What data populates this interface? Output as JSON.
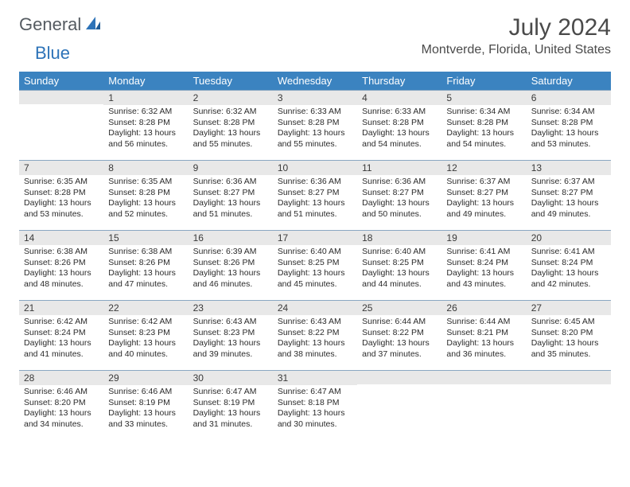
{
  "logo": {
    "general": "General",
    "blue": "Blue"
  },
  "title": "July 2024",
  "location": "Montverde, Florida, United States",
  "colors": {
    "header_bg": "#3b83c0",
    "header_text": "#ffffff",
    "daynum_bg": "#e8e8e8",
    "row_border": "#8aa7c2",
    "logo_gray": "#555b61",
    "logo_blue": "#2d73b8",
    "text": "#2b2b2b"
  },
  "weekdays": [
    "Sunday",
    "Monday",
    "Tuesday",
    "Wednesday",
    "Thursday",
    "Friday",
    "Saturday"
  ],
  "weeks": [
    [
      {
        "day": "",
        "sunrise": "",
        "sunset": "",
        "daylight_line1": "",
        "daylight_line2": ""
      },
      {
        "day": "1",
        "sunrise": "Sunrise: 6:32 AM",
        "sunset": "Sunset: 8:28 PM",
        "daylight_line1": "Daylight: 13 hours",
        "daylight_line2": "and 56 minutes."
      },
      {
        "day": "2",
        "sunrise": "Sunrise: 6:32 AM",
        "sunset": "Sunset: 8:28 PM",
        "daylight_line1": "Daylight: 13 hours",
        "daylight_line2": "and 55 minutes."
      },
      {
        "day": "3",
        "sunrise": "Sunrise: 6:33 AM",
        "sunset": "Sunset: 8:28 PM",
        "daylight_line1": "Daylight: 13 hours",
        "daylight_line2": "and 55 minutes."
      },
      {
        "day": "4",
        "sunrise": "Sunrise: 6:33 AM",
        "sunset": "Sunset: 8:28 PM",
        "daylight_line1": "Daylight: 13 hours",
        "daylight_line2": "and 54 minutes."
      },
      {
        "day": "5",
        "sunrise": "Sunrise: 6:34 AM",
        "sunset": "Sunset: 8:28 PM",
        "daylight_line1": "Daylight: 13 hours",
        "daylight_line2": "and 54 minutes."
      },
      {
        "day": "6",
        "sunrise": "Sunrise: 6:34 AM",
        "sunset": "Sunset: 8:28 PM",
        "daylight_line1": "Daylight: 13 hours",
        "daylight_line2": "and 53 minutes."
      }
    ],
    [
      {
        "day": "7",
        "sunrise": "Sunrise: 6:35 AM",
        "sunset": "Sunset: 8:28 PM",
        "daylight_line1": "Daylight: 13 hours",
        "daylight_line2": "and 53 minutes."
      },
      {
        "day": "8",
        "sunrise": "Sunrise: 6:35 AM",
        "sunset": "Sunset: 8:28 PM",
        "daylight_line1": "Daylight: 13 hours",
        "daylight_line2": "and 52 minutes."
      },
      {
        "day": "9",
        "sunrise": "Sunrise: 6:36 AM",
        "sunset": "Sunset: 8:27 PM",
        "daylight_line1": "Daylight: 13 hours",
        "daylight_line2": "and 51 minutes."
      },
      {
        "day": "10",
        "sunrise": "Sunrise: 6:36 AM",
        "sunset": "Sunset: 8:27 PM",
        "daylight_line1": "Daylight: 13 hours",
        "daylight_line2": "and 51 minutes."
      },
      {
        "day": "11",
        "sunrise": "Sunrise: 6:36 AM",
        "sunset": "Sunset: 8:27 PM",
        "daylight_line1": "Daylight: 13 hours",
        "daylight_line2": "and 50 minutes."
      },
      {
        "day": "12",
        "sunrise": "Sunrise: 6:37 AM",
        "sunset": "Sunset: 8:27 PM",
        "daylight_line1": "Daylight: 13 hours",
        "daylight_line2": "and 49 minutes."
      },
      {
        "day": "13",
        "sunrise": "Sunrise: 6:37 AM",
        "sunset": "Sunset: 8:27 PM",
        "daylight_line1": "Daylight: 13 hours",
        "daylight_line2": "and 49 minutes."
      }
    ],
    [
      {
        "day": "14",
        "sunrise": "Sunrise: 6:38 AM",
        "sunset": "Sunset: 8:26 PM",
        "daylight_line1": "Daylight: 13 hours",
        "daylight_line2": "and 48 minutes."
      },
      {
        "day": "15",
        "sunrise": "Sunrise: 6:38 AM",
        "sunset": "Sunset: 8:26 PM",
        "daylight_line1": "Daylight: 13 hours",
        "daylight_line2": "and 47 minutes."
      },
      {
        "day": "16",
        "sunrise": "Sunrise: 6:39 AM",
        "sunset": "Sunset: 8:26 PM",
        "daylight_line1": "Daylight: 13 hours",
        "daylight_line2": "and 46 minutes."
      },
      {
        "day": "17",
        "sunrise": "Sunrise: 6:40 AM",
        "sunset": "Sunset: 8:25 PM",
        "daylight_line1": "Daylight: 13 hours",
        "daylight_line2": "and 45 minutes."
      },
      {
        "day": "18",
        "sunrise": "Sunrise: 6:40 AM",
        "sunset": "Sunset: 8:25 PM",
        "daylight_line1": "Daylight: 13 hours",
        "daylight_line2": "and 44 minutes."
      },
      {
        "day": "19",
        "sunrise": "Sunrise: 6:41 AM",
        "sunset": "Sunset: 8:24 PM",
        "daylight_line1": "Daylight: 13 hours",
        "daylight_line2": "and 43 minutes."
      },
      {
        "day": "20",
        "sunrise": "Sunrise: 6:41 AM",
        "sunset": "Sunset: 8:24 PM",
        "daylight_line1": "Daylight: 13 hours",
        "daylight_line2": "and 42 minutes."
      }
    ],
    [
      {
        "day": "21",
        "sunrise": "Sunrise: 6:42 AM",
        "sunset": "Sunset: 8:24 PM",
        "daylight_line1": "Daylight: 13 hours",
        "daylight_line2": "and 41 minutes."
      },
      {
        "day": "22",
        "sunrise": "Sunrise: 6:42 AM",
        "sunset": "Sunset: 8:23 PM",
        "daylight_line1": "Daylight: 13 hours",
        "daylight_line2": "and 40 minutes."
      },
      {
        "day": "23",
        "sunrise": "Sunrise: 6:43 AM",
        "sunset": "Sunset: 8:23 PM",
        "daylight_line1": "Daylight: 13 hours",
        "daylight_line2": "and 39 minutes."
      },
      {
        "day": "24",
        "sunrise": "Sunrise: 6:43 AM",
        "sunset": "Sunset: 8:22 PM",
        "daylight_line1": "Daylight: 13 hours",
        "daylight_line2": "and 38 minutes."
      },
      {
        "day": "25",
        "sunrise": "Sunrise: 6:44 AM",
        "sunset": "Sunset: 8:22 PM",
        "daylight_line1": "Daylight: 13 hours",
        "daylight_line2": "and 37 minutes."
      },
      {
        "day": "26",
        "sunrise": "Sunrise: 6:44 AM",
        "sunset": "Sunset: 8:21 PM",
        "daylight_line1": "Daylight: 13 hours",
        "daylight_line2": "and 36 minutes."
      },
      {
        "day": "27",
        "sunrise": "Sunrise: 6:45 AM",
        "sunset": "Sunset: 8:20 PM",
        "daylight_line1": "Daylight: 13 hours",
        "daylight_line2": "and 35 minutes."
      }
    ],
    [
      {
        "day": "28",
        "sunrise": "Sunrise: 6:46 AM",
        "sunset": "Sunset: 8:20 PM",
        "daylight_line1": "Daylight: 13 hours",
        "daylight_line2": "and 34 minutes."
      },
      {
        "day": "29",
        "sunrise": "Sunrise: 6:46 AM",
        "sunset": "Sunset: 8:19 PM",
        "daylight_line1": "Daylight: 13 hours",
        "daylight_line2": "and 33 minutes."
      },
      {
        "day": "30",
        "sunrise": "Sunrise: 6:47 AM",
        "sunset": "Sunset: 8:19 PM",
        "daylight_line1": "Daylight: 13 hours",
        "daylight_line2": "and 31 minutes."
      },
      {
        "day": "31",
        "sunrise": "Sunrise: 6:47 AM",
        "sunset": "Sunset: 8:18 PM",
        "daylight_line1": "Daylight: 13 hours",
        "daylight_line2": "and 30 minutes."
      },
      {
        "day": "",
        "sunrise": "",
        "sunset": "",
        "daylight_line1": "",
        "daylight_line2": ""
      },
      {
        "day": "",
        "sunrise": "",
        "sunset": "",
        "daylight_line1": "",
        "daylight_line2": ""
      },
      {
        "day": "",
        "sunrise": "",
        "sunset": "",
        "daylight_line1": "",
        "daylight_line2": ""
      }
    ]
  ]
}
